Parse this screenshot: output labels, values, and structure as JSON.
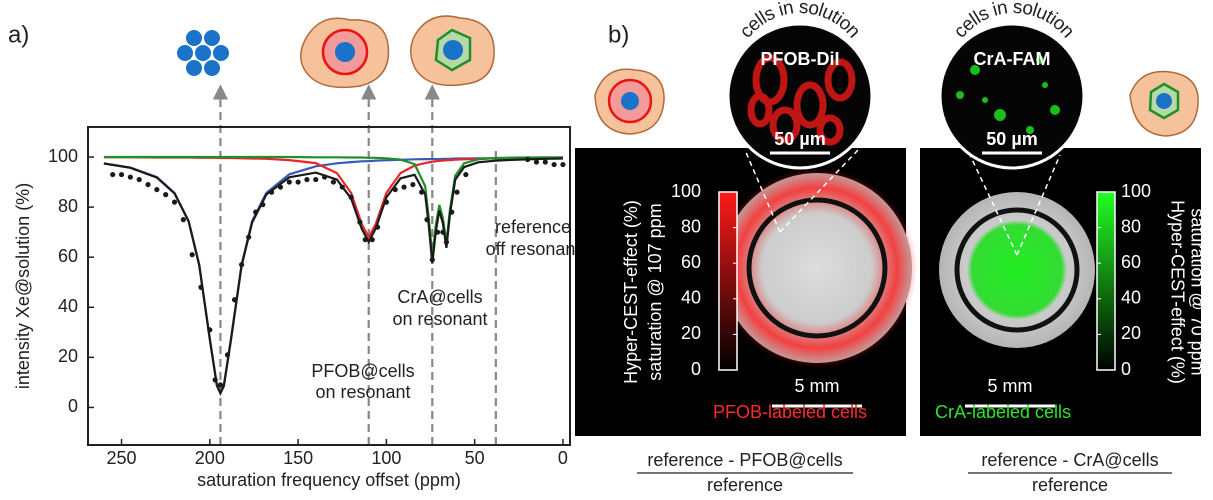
{
  "chart_data": {
    "type": "line",
    "xlabel": "saturation frequency offset (ppm)",
    "ylabel": "intensity Xe@solution (%)",
    "xlim": [
      269,
      -4
    ],
    "ylim": [
      -15,
      112
    ],
    "xticks": [
      250,
      200,
      150,
      100,
      50,
      0
    ],
    "yticks": [
      0,
      20,
      40,
      60,
      80,
      100
    ],
    "x": [
      260,
      245,
      230,
      220,
      212,
      206,
      200,
      196,
      194,
      192,
      188,
      182,
      176,
      168,
      155,
      140,
      128,
      120,
      114,
      110,
      106,
      100,
      92,
      84,
      78,
      76,
      74,
      72,
      70,
      68,
      66,
      64,
      61,
      56,
      48,
      38,
      25,
      10,
      0
    ],
    "series": [
      {
        "color": "#3a5bb5",
        "values": [
          97.5,
          95.8,
          92.0,
          85.7,
          74.5,
          57.1,
          27.5,
          9.0,
          6.0,
          9.0,
          27.5,
          57.1,
          74.5,
          85.7,
          93.1,
          96.3,
          97.5,
          98.0,
          98.3,
          98.4,
          98.6,
          98.7,
          98.9,
          99.1,
          99.2,
          99.2,
          99.2,
          99.2,
          99.2,
          99.3,
          99.3,
          99.3,
          99.4,
          99.4,
          99.5,
          99.5,
          99.6,
          99.7,
          99.7
        ]
      },
      {
        "color": "#e8262a",
        "values": [
          99.9,
          99.9,
          99.8,
          99.8,
          99.8,
          99.7,
          99.7,
          99.7,
          99.6,
          99.6,
          99.6,
          99.5,
          99.4,
          99.3,
          98.8,
          97.6,
          93.6,
          85.7,
          73.3,
          68.0,
          73.3,
          85.7,
          93.6,
          96.6,
          97.6,
          97.9,
          98.1,
          98.3,
          98.5,
          98.6,
          98.7,
          98.8,
          99.0,
          99.1,
          99.3,
          99.5,
          99.6,
          99.7,
          99.8
        ]
      },
      {
        "color": "#1f8f2a",
        "values": [
          100.0,
          100.0,
          100.0,
          100.0,
          100.0,
          100.0,
          100.0,
          100.0,
          100.0,
          100.0,
          100.0,
          100.0,
          100.0,
          100.0,
          100.0,
          99.9,
          99.9,
          99.8,
          99.8,
          99.7,
          99.7,
          99.5,
          99.0,
          97.2,
          88.3,
          75.6,
          60.2,
          72.8,
          80.9,
          75.6,
          65.7,
          78.9,
          92.5,
          97.5,
          99.1,
          99.6,
          99.8,
          99.9,
          99.9
        ]
      },
      {
        "color": "#1a1a1a",
        "values": [
          97.4,
          95.7,
          91.8,
          85.5,
          74.3,
          56.8,
          27.2,
          8.7,
          5.6,
          8.6,
          27.1,
          56.6,
          73.9,
          85.0,
          91.9,
          93.8,
          91.0,
          83.5,
          71.4,
          66.1,
          71.6,
          83.9,
          91.5,
          92.9,
          85.1,
          72.7,
          57.5,
          70.3,
          78.6,
          73.5,
          63.7,
          77.0,
          90.9,
          96.0,
          97.9,
          98.6,
          99.0,
          99.3,
          99.4
        ]
      }
    ],
    "scatter": {
      "color": "#1a1a1a",
      "x": [
        255,
        250,
        245,
        240,
        235,
        230,
        225,
        220,
        215,
        210,
        205,
        200,
        197,
        194,
        190,
        186,
        182,
        178,
        174,
        170,
        165,
        160,
        155,
        150,
        145,
        140,
        135,
        130,
        125,
        120,
        115,
        112,
        108,
        105,
        100,
        95,
        90,
        85,
        80,
        77,
        74,
        71,
        68,
        66,
        63,
        60,
        55,
        20,
        15,
        10,
        5,
        0
      ],
      "y": [
        93,
        93,
        92,
        91,
        89,
        87,
        85,
        82,
        75,
        61,
        48,
        31,
        11,
        9,
        21,
        43,
        57,
        68,
        78,
        81,
        86,
        88,
        90,
        90,
        91,
        91,
        92,
        90,
        88,
        84,
        74,
        67,
        67,
        72,
        82,
        87,
        88,
        89,
        86,
        75,
        59,
        70,
        70,
        66,
        78,
        86,
        93,
        99,
        98,
        98,
        97,
        97
      ]
    },
    "reference_lines": [
      194,
      110,
      74,
      38
    ],
    "annotations": [
      "PFOB@cells",
      "on resonant",
      "CrA@cells",
      "on resonant",
      "reference",
      "off resonant"
    ]
  },
  "panel_labels": [
    "a)",
    "b)"
  ],
  "panel_b": {
    "left": {
      "inset_caption": "cells in solution",
      "inset_label": "PFOB-DiI",
      "inset_scale": "50 µm",
      "scale": "5 mm",
      "colorbar_title": "Hyper-CEST-effect  (%)",
      "colorbar_subtitle": "saturation @ 107 ppm",
      "colorbar_ticks": [
        0,
        20,
        40,
        60,
        80,
        100
      ],
      "caption": "PFOB-labeled cells",
      "numerator": "reference - PFOB@cells",
      "denominator": "reference"
    },
    "right": {
      "inset_caption": "cells in solution",
      "inset_label": "CrA-FAM",
      "inset_scale": "50 µm",
      "scale": "5 mm",
      "colorbar_title": "Hyper-CEST-effect  (%)",
      "colorbar_subtitle": "saturation @ 70 ppm",
      "colorbar_ticks": [
        0,
        20,
        40,
        60,
        80,
        100
      ],
      "caption": "CrA-labeled cells",
      "numerator": "reference - CrA@cells",
      "denominator": "reference"
    }
  }
}
